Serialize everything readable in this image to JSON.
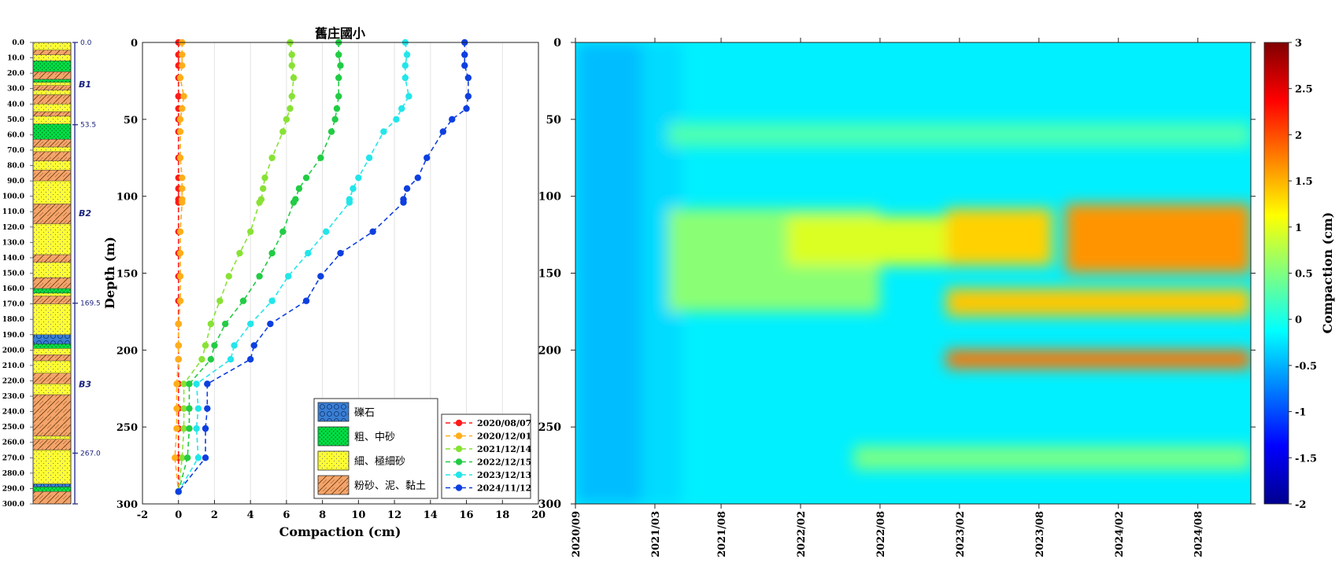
{
  "chart_data": [
    {
      "type": "column",
      "depth_ticks": [
        "0.0",
        "10.0",
        "20.0",
        "30.0",
        "40.0",
        "50.0",
        "60.0",
        "70.0",
        "80.0",
        "90.0",
        "100.0",
        "110.0",
        "120.0",
        "130.0",
        "140.0",
        "150.0",
        "160.0",
        "170.0",
        "180.0",
        "190.0",
        "200.0",
        "210.0",
        "220.0",
        "230.0",
        "240.0",
        "250.0",
        "260.0",
        "270.0",
        "280.0",
        "290.0",
        "300.0"
      ],
      "layers": [
        {
          "top": 0,
          "bottom": 5,
          "lith": "fine"
        },
        {
          "top": 5,
          "bottom": 8,
          "lith": "silt"
        },
        {
          "top": 8,
          "bottom": 12,
          "lith": "fine"
        },
        {
          "top": 12,
          "bottom": 19,
          "lith": "coarse"
        },
        {
          "top": 19,
          "bottom": 24,
          "lith": "silt"
        },
        {
          "top": 24,
          "bottom": 26,
          "lith": "coarse"
        },
        {
          "top": 26,
          "bottom": 28,
          "lith": "fine"
        },
        {
          "top": 28,
          "bottom": 31,
          "lith": "silt"
        },
        {
          "top": 31,
          "bottom": 34,
          "lith": "fine"
        },
        {
          "top": 34,
          "bottom": 40,
          "lith": "silt"
        },
        {
          "top": 40,
          "bottom": 45,
          "lith": "fine"
        },
        {
          "top": 45,
          "bottom": 48,
          "lith": "silt"
        },
        {
          "top": 48,
          "bottom": 53,
          "lith": "fine"
        },
        {
          "top": 53,
          "bottom": 63,
          "lith": "coarse"
        },
        {
          "top": 63,
          "bottom": 68,
          "lith": "silt"
        },
        {
          "top": 68,
          "bottom": 71,
          "lith": "fine"
        },
        {
          "top": 71,
          "bottom": 77,
          "lith": "silt"
        },
        {
          "top": 77,
          "bottom": 83,
          "lith": "fine"
        },
        {
          "top": 83,
          "bottom": 90,
          "lith": "silt"
        },
        {
          "top": 90,
          "bottom": 105,
          "lith": "fine"
        },
        {
          "top": 105,
          "bottom": 118,
          "lith": "silt"
        },
        {
          "top": 118,
          "bottom": 138,
          "lith": "fine"
        },
        {
          "top": 138,
          "bottom": 143,
          "lith": "silt"
        },
        {
          "top": 143,
          "bottom": 153,
          "lith": "fine"
        },
        {
          "top": 153,
          "bottom": 160,
          "lith": "silt"
        },
        {
          "top": 160,
          "bottom": 163,
          "lith": "coarse"
        },
        {
          "top": 163,
          "bottom": 165,
          "lith": "fine"
        },
        {
          "top": 165,
          "bottom": 170,
          "lith": "silt"
        },
        {
          "top": 170,
          "bottom": 190,
          "lith": "fine"
        },
        {
          "top": 190,
          "bottom": 196,
          "lith": "gravel"
        },
        {
          "top": 196,
          "bottom": 199,
          "lith": "coarse"
        },
        {
          "top": 199,
          "bottom": 203,
          "lith": "fine"
        },
        {
          "top": 203,
          "bottom": 207,
          "lith": "silt"
        },
        {
          "top": 207,
          "bottom": 215,
          "lith": "fine"
        },
        {
          "top": 215,
          "bottom": 222,
          "lith": "silt"
        },
        {
          "top": 222,
          "bottom": 229,
          "lith": "fine"
        },
        {
          "top": 229,
          "bottom": 256,
          "lith": "silt"
        },
        {
          "top": 256,
          "bottom": 258,
          "lith": "fine"
        },
        {
          "top": 258,
          "bottom": 265,
          "lith": "silt"
        },
        {
          "top": 265,
          "bottom": 287,
          "lith": "fine"
        },
        {
          "top": 287,
          "bottom": 289,
          "lith": "gravel"
        },
        {
          "top": 289,
          "bottom": 292,
          "lith": "coarse"
        },
        {
          "top": 292,
          "bottom": 300,
          "lith": "silt"
        }
      ],
      "boundaries": [
        {
          "depth": 0,
          "label": "0.0"
        },
        {
          "depth": 53.5,
          "label": "53.5"
        },
        {
          "depth": 169.5,
          "label": "169.5"
        },
        {
          "depth": 267.0,
          "label": "267.0"
        },
        {
          "depth": 300,
          "label": ""
        }
      ],
      "zones": [
        {
          "label": "B1",
          "depth": 27
        },
        {
          "label": "B2",
          "depth": 111
        },
        {
          "label": "B3",
          "depth": 222
        }
      ],
      "colors": {
        "fine": "#ffff33",
        "silt": "#f4a46a",
        "coarse": "#00dd44",
        "gravel": "#3a7fd5",
        "accent": "#1a237e"
      }
    },
    {
      "type": "line",
      "title": "舊庄國小",
      "xlabel": "Compaction (cm)",
      "ylabel": "Depth (m)",
      "xlim": [
        -2,
        20
      ],
      "ylim": [
        300,
        0
      ],
      "xticks": [
        "-2",
        "0",
        "2",
        "4",
        "6",
        "8",
        "10",
        "12",
        "14",
        "16",
        "18",
        "20"
      ],
      "yticks": [
        "0",
        "50",
        "100",
        "150",
        "200",
        "250",
        "300"
      ],
      "grid": true,
      "legend_position": "bottom-right",
      "depths": [
        0,
        8,
        15,
        23,
        35,
        43,
        50,
        58,
        75,
        88,
        95,
        102,
        104,
        123,
        137,
        152,
        168,
        183,
        197,
        206,
        222,
        238,
        251,
        270,
        292
      ],
      "series": [
        {
          "name": "2020/08/07",
          "color": "#ff1a1a",
          "values": [
            0,
            0,
            0,
            0,
            0,
            0,
            0,
            0,
            0,
            0,
            0,
            0,
            0,
            0,
            0,
            0,
            0,
            0,
            0,
            0,
            0,
            0,
            0,
            0,
            0
          ]
        },
        {
          "name": "2020/12/01",
          "color": "#ffae1a",
          "values": [
            0.2,
            0.2,
            0.2,
            0.1,
            0.3,
            0.2,
            0.1,
            0.1,
            0.1,
            0.2,
            0.2,
            0.2,
            0.2,
            0.1,
            0.1,
            0.1,
            0.1,
            0.0,
            0.0,
            0.0,
            -0.1,
            -0.1,
            -0.1,
            -0.2,
            0.0
          ]
        },
        {
          "name": "2021/12/14",
          "color": "#88e234",
          "values": [
            6.2,
            6.3,
            6.3,
            6.4,
            6.3,
            6.2,
            6.0,
            5.8,
            5.2,
            4.8,
            4.7,
            4.6,
            4.5,
            4.0,
            3.4,
            2.8,
            2.3,
            1.8,
            1.5,
            1.3,
            0.3,
            0.3,
            0.3,
            0.2,
            0
          ]
        },
        {
          "name": "2022/12/15",
          "color": "#22cc44",
          "values": [
            8.9,
            8.9,
            9.0,
            8.9,
            8.9,
            8.8,
            8.7,
            8.5,
            7.9,
            7.1,
            6.7,
            6.5,
            6.4,
            5.8,
            5.2,
            4.5,
            3.6,
            2.6,
            2.0,
            1.8,
            0.6,
            0.6,
            0.6,
            0.5,
            0
          ]
        },
        {
          "name": "2023/12/13",
          "color": "#22e6ea",
          "values": [
            12.6,
            12.7,
            12.6,
            12.6,
            12.8,
            12.4,
            12.1,
            11.4,
            10.6,
            10.0,
            9.7,
            9.5,
            9.5,
            8.2,
            7.2,
            6.1,
            5.2,
            4.0,
            3.1,
            2.9,
            1.0,
            1.1,
            1.0,
            1.1,
            0
          ]
        },
        {
          "name": "2024/11/12",
          "color": "#0d3fe0",
          "values": [
            15.9,
            15.9,
            15.9,
            16.1,
            16.1,
            16.0,
            15.2,
            14.7,
            13.8,
            13.3,
            12.7,
            12.5,
            12.5,
            10.8,
            9.0,
            7.9,
            7.1,
            5.1,
            4.2,
            4.0,
            1.6,
            1.6,
            1.5,
            1.5,
            0
          ]
        }
      ],
      "lithology_legend": [
        {
          "key": "gravel",
          "label": "礫石"
        },
        {
          "key": "coarse",
          "label": "粗、中砂"
        },
        {
          "key": "fine",
          "label": "細、極細砂"
        },
        {
          "key": "silt",
          "label": "粉砂、泥、黏土"
        }
      ]
    },
    {
      "type": "heatmap",
      "colorbar_label": "Compaction (cm)",
      "clim": [
        -2,
        3
      ],
      "colorbar_ticks": [
        "3",
        "2.5",
        "2",
        "1.5",
        "1",
        "0.5",
        "0",
        "-0.5",
        "-1",
        "-1.5",
        "-2"
      ],
      "yticks": [
        "0",
        "50",
        "100",
        "150",
        "200",
        "250",
        "300"
      ],
      "ylim": [
        300,
        0
      ],
      "xlim": [
        "2020/09",
        "2024/12"
      ],
      "xticks": [
        "2020/09",
        "2021/03",
        "2021/08",
        "2022/02",
        "2022/08",
        "2023/02",
        "2023/08",
        "2024/02",
        "2024/08"
      ],
      "colormap": "jet",
      "background_value": -0.2,
      "features": [
        {
          "depth_range": [
            0,
            300
          ],
          "time_range": [
            "2020/09",
            "2021/02"
          ],
          "value": -0.45
        },
        {
          "depth_range": [
            0,
            300
          ],
          "time_range": [
            "2021/02",
            "2021/05"
          ],
          "value": -0.3
        },
        {
          "depth_range": [
            108,
            175
          ],
          "time_range": [
            "2021/04",
            "2022/08"
          ],
          "value": 0.55
        },
        {
          "depth_range": [
            113,
            145
          ],
          "time_range": [
            "2022/01",
            "2023/01"
          ],
          "value": 0.95
        },
        {
          "depth_range": [
            108,
            145
          ],
          "time_range": [
            "2023/01",
            "2023/09"
          ],
          "value": 1.35
        },
        {
          "depth_range": [
            105,
            150
          ],
          "time_range": [
            "2023/10",
            "2024/12"
          ],
          "value": 1.65
        },
        {
          "depth_range": [
            160,
            178
          ],
          "time_range": [
            "2023/01",
            "2024/12"
          ],
          "value": 1.4
        },
        {
          "depth_range": [
            200,
            212
          ],
          "time_range": [
            "2023/01",
            "2024/12"
          ],
          "value": 1.8
        },
        {
          "depth_range": [
            52,
            68
          ],
          "time_range": [
            "2021/04",
            "2024/12"
          ],
          "value": 0.25
        },
        {
          "depth_range": [
            262,
            278
          ],
          "time_range": [
            "2022/06",
            "2024/12"
          ],
          "value": 0.45
        }
      ]
    }
  ]
}
